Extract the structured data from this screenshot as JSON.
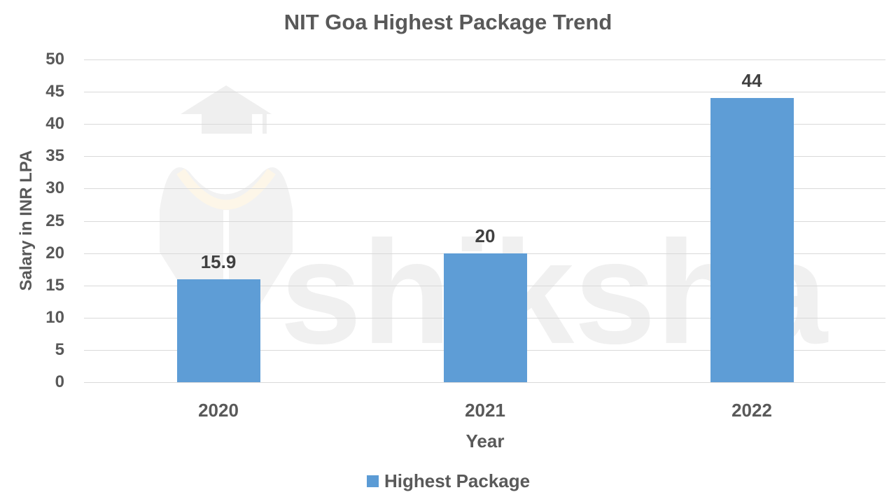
{
  "chart_data": {
    "type": "bar",
    "title": "NIT Goa Highest Package Trend",
    "xlabel": "Year",
    "ylabel": "Salary in INR LPA",
    "categories": [
      "2020",
      "2021",
      "2022"
    ],
    "series": [
      {
        "name": "Highest Package",
        "values": [
          15.9,
          20,
          44
        ],
        "color": "#5b9bd5"
      }
    ],
    "data_labels": [
      "15.9",
      "20",
      "44"
    ],
    "ylim": [
      0,
      50
    ],
    "yticks": [
      "50",
      "45",
      "40",
      "35",
      "30",
      "25",
      "20",
      "15",
      "10",
      "5",
      "0"
    ],
    "grid": true,
    "legend_position": "bottom"
  },
  "watermark": {
    "text": "shiksha"
  }
}
